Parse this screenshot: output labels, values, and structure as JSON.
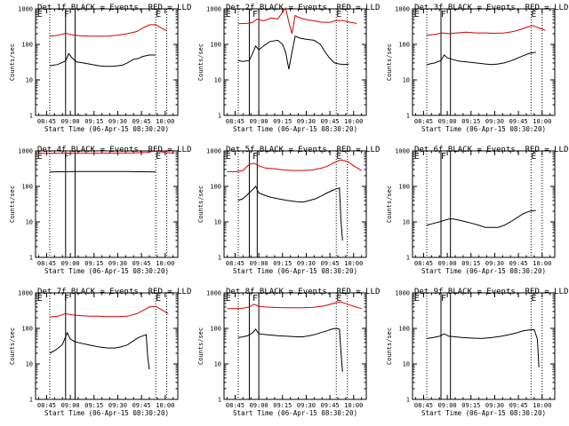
{
  "chart_data": [
    {
      "type": "line",
      "title": "Det 1f BLACK = Events, RED = LLD",
      "ylabel": "Counts/sec",
      "xlabel": "Start Time (06-Apr-15 08:30:20)",
      "x_ticks": [
        "08:45",
        "09:00",
        "09:15",
        "09:30",
        "09:45",
        "10:00"
      ],
      "y_ticks": [
        "1",
        "10",
        "100",
        "1000"
      ],
      "ylim": [
        1,
        1000
      ],
      "yscale": "log",
      "xlim_minutes": [
        8,
        98
      ],
      "markers": [
        {
          "label": "E",
          "t": 9
        },
        {
          "label": "F",
          "t": 26
        },
        {
          "label": "E",
          "t": 84
        }
      ],
      "dotted_lines": [
        17,
        84,
        91
      ],
      "solid_lines": [
        27,
        33
      ],
      "series": [
        {
          "name": "RED = LLD",
          "color": "#d40000",
          "x": [
            17,
            22,
            27,
            31,
            36,
            42,
            48,
            54,
            60,
            66,
            72,
            76,
            80,
            84,
            87,
            91
          ],
          "y": [
            170,
            180,
            205,
            185,
            175,
            170,
            170,
            172,
            182,
            200,
            230,
            290,
            355,
            360,
            300,
            240
          ]
        },
        {
          "name": "BLACK = Events",
          "color": "#000000",
          "x": [
            17,
            22,
            27,
            29,
            31,
            34,
            38,
            42,
            48,
            52,
            56,
            60,
            63,
            66,
            70,
            73,
            76,
            80,
            84
          ],
          "y": [
            25,
            27,
            34,
            55,
            42,
            32,
            30,
            28,
            25,
            24,
            24,
            25,
            26,
            30,
            38,
            40,
            46,
            50,
            50
          ]
        }
      ]
    },
    {
      "type": "line",
      "title": "Det 2f BLACK = Events, RED = LLD",
      "ylabel": "Counts/sec",
      "xlabel": "Start Time (06-Apr-15 08:30:20)",
      "x_ticks": [
        "08:45",
        "09:00",
        "09:15",
        "09:30",
        "09:45",
        "10:00"
      ],
      "y_ticks": [
        "1",
        "10",
        "100",
        "1000"
      ],
      "ylim": [
        1,
        1000
      ],
      "yscale": "log",
      "xlim_minutes": [
        8,
        98
      ],
      "markers": [
        {
          "label": "E",
          "t": 9
        },
        {
          "label": "F",
          "t": 26
        },
        {
          "label": "E",
          "t": 79
        }
      ],
      "dotted_lines": [
        17,
        79,
        86
      ],
      "solid_lines": [
        24,
        30
      ],
      "series": [
        {
          "name": "RED = LLD",
          "color": "#d40000",
          "x": [
            17,
            22,
            26,
            29,
            33,
            38,
            42,
            45,
            47,
            49,
            51,
            53,
            56,
            60,
            65,
            70,
            75,
            79,
            83,
            88,
            92
          ],
          "y": [
            380,
            390,
            410,
            520,
            460,
            560,
            520,
            800,
            1050,
            420,
            200,
            650,
            560,
            500,
            460,
            420,
            420,
            470,
            470,
            420,
            390
          ]
        },
        {
          "name": "BLACK = Events",
          "color": "#000000",
          "x": [
            17,
            20,
            24,
            26,
            28,
            30,
            33,
            37,
            42,
            45,
            47,
            49,
            51,
            53,
            56,
            60,
            65,
            69,
            72,
            75,
            78,
            81,
            84,
            87
          ],
          "y": [
            35,
            33,
            35,
            55,
            90,
            70,
            90,
            120,
            130,
            100,
            60,
            20,
            60,
            170,
            150,
            140,
            130,
            100,
            60,
            40,
            30,
            28,
            27,
            28
          ]
        }
      ]
    },
    {
      "type": "line",
      "title": "Det 3f BLACK = Events, RED = LLD",
      "ylabel": "Counts/sec",
      "xlabel": "Start Time (06-Apr-15 08:30:20)",
      "x_ticks": [
        "08:45",
        "09:00",
        "09:15",
        "09:30",
        "09:45",
        "10:00"
      ],
      "y_ticks": [
        "1",
        "10",
        "100",
        "1000"
      ],
      "ylim": [
        1,
        1000
      ],
      "yscale": "log",
      "xlim_minutes": [
        8,
        98
      ],
      "markers": [
        {
          "label": "E",
          "t": 9
        },
        {
          "label": "F",
          "t": 26
        },
        {
          "label": "E",
          "t": 83
        }
      ],
      "dotted_lines": [
        17,
        83,
        90
      ],
      "solid_lines": [
        26,
        32
      ],
      "series": [
        {
          "name": "RED = LLD",
          "color": "#d40000",
          "x": [
            17,
            22,
            27,
            31,
            36,
            42,
            48,
            54,
            60,
            66,
            72,
            76,
            80,
            84,
            87,
            92
          ],
          "y": [
            180,
            190,
            210,
            200,
            210,
            220,
            210,
            210,
            205,
            210,
            230,
            260,
            300,
            340,
            300,
            250
          ]
        },
        {
          "name": "BLACK = Events",
          "color": "#000000",
          "x": [
            17,
            22,
            26,
            28,
            30,
            33,
            37,
            42,
            48,
            54,
            58,
            62,
            66,
            70,
            74,
            78,
            82,
            86
          ],
          "y": [
            27,
            30,
            35,
            50,
            42,
            38,
            34,
            32,
            30,
            28,
            27,
            28,
            30,
            34,
            40,
            48,
            56,
            60
          ]
        }
      ]
    },
    {
      "type": "line",
      "title": "Det 4f BLACK = Events, RED = LLD",
      "ylabel": "Counts/sec",
      "xlabel": "Start Time (06-Apr-15 08:30:20)",
      "x_ticks": [
        "08:45",
        "09:00",
        "09:15",
        "09:30",
        "09:45",
        "10:00"
      ],
      "y_ticks": [
        "1",
        "10",
        "100",
        "1000"
      ],
      "ylim": [
        1,
        1000
      ],
      "yscale": "log",
      "xlim_minutes": [
        8,
        98
      ],
      "markers": [
        {
          "label": "E",
          "t": 9
        },
        {
          "label": "F",
          "t": 26
        },
        {
          "label": "E",
          "t": 84
        }
      ],
      "dotted_lines": [
        17,
        84,
        91
      ],
      "solid_lines": [
        27,
        33
      ],
      "series": [
        {
          "name": "RED = LLD",
          "color": "#d40000",
          "x": [
            10,
            20,
            30,
            40,
            50,
            60,
            70,
            78,
            84,
            90,
            96
          ],
          "y": [
            850,
            850,
            860,
            860,
            860,
            865,
            870,
            900,
            1000,
            900,
            850
          ]
        },
        {
          "name": "BLACK = Events",
          "color": "#000000",
          "x": [
            17,
            25,
            35,
            45,
            55,
            65,
            75,
            84
          ],
          "y": [
            255,
            258,
            262,
            262,
            262,
            262,
            258,
            255
          ]
        }
      ]
    },
    {
      "type": "line",
      "title": "Det 5f BLACK = Events, RED = LLD",
      "ylabel": "Counts/sec",
      "xlabel": "Start Time (06-Apr-15 08:30:20)",
      "x_ticks": [
        "08:45",
        "09:00",
        "09:15",
        "09:30",
        "09:45",
        "10:00"
      ],
      "y_ticks": [
        "1",
        "10",
        "100",
        "1000"
      ],
      "ylim": [
        1,
        1000
      ],
      "yscale": "log",
      "xlim_minutes": [
        8,
        98
      ],
      "markers": [
        {
          "label": "E",
          "t": 9
        },
        {
          "label": "F",
          "t": 26
        },
        {
          "label": "E",
          "t": 79
        }
      ],
      "dotted_lines": [
        17,
        79,
        86
      ],
      "solid_lines": [
        24,
        29
      ],
      "series": [
        {
          "name": "RED = LLD",
          "color": "#d40000",
          "x": [
            10,
            16,
            20,
            24,
            27,
            30,
            34,
            40,
            46,
            52,
            58,
            64,
            70,
            74,
            78,
            82,
            86,
            90,
            95
          ],
          "y": [
            260,
            260,
            280,
            420,
            450,
            380,
            330,
            310,
            290,
            280,
            280,
            290,
            330,
            380,
            480,
            560,
            500,
            380,
            280
          ]
        },
        {
          "name": "BLACK = Events",
          "color": "#000000",
          "x": [
            17,
            20,
            23,
            26,
            28,
            30,
            33,
            37,
            42,
            48,
            54,
            58,
            62,
            66,
            70,
            73,
            76,
            79,
            81,
            82,
            83
          ],
          "y": [
            40,
            45,
            60,
            80,
            100,
            65,
            58,
            50,
            45,
            40,
            37,
            36,
            40,
            45,
            55,
            65,
            75,
            85,
            90,
            10,
            3
          ]
        }
      ]
    },
    {
      "type": "line",
      "title": "Det 6f BLACK = Events, RED = LLD",
      "ylabel": "Counts/sec",
      "xlabel": "Start Time (06-Apr-15 08:30:20)",
      "x_ticks": [
        "08:45",
        "09:00",
        "09:15",
        "09:30",
        "09:45",
        "10:00"
      ],
      "y_ticks": [
        "1",
        "10",
        "100",
        "1000"
      ],
      "ylim": [
        1,
        1000
      ],
      "yscale": "log",
      "xlim_minutes": [
        8,
        98
      ],
      "markers": [
        {
          "label": "E",
          "t": 9
        },
        {
          "label": "F",
          "t": 26
        },
        {
          "label": "E",
          "t": 83
        }
      ],
      "dotted_lines": [
        17,
        83,
        90
      ],
      "solid_lines": [
        26,
        32
      ],
      "series": [
        {
          "name": "BLACK = Events",
          "color": "#000000",
          "x": [
            17,
            21,
            25,
            28,
            31,
            34,
            38,
            42,
            46,
            50,
            54,
            58,
            62,
            66,
            70,
            74,
            78,
            82,
            86
          ],
          "y": [
            8,
            9,
            10,
            11,
            12,
            12,
            11,
            10,
            9,
            8,
            7,
            7,
            7,
            8,
            10,
            13,
            17,
            20,
            21
          ]
        }
      ]
    },
    {
      "type": "line",
      "title": "Det 7f BLACK = Events, RED = LLD",
      "ylabel": "Counts/sec",
      "xlabel": "Start Time (06-Apr-15 08:30:20)",
      "x_ticks": [
        "08:45",
        "09:00",
        "09:15",
        "09:30",
        "09:45",
        "10:00"
      ],
      "y_ticks": [
        "1",
        "10",
        "100",
        "1000"
      ],
      "ylim": [
        1,
        1000
      ],
      "yscale": "log",
      "xlim_minutes": [
        8,
        98
      ],
      "markers": [
        {
          "label": "E",
          "t": 9
        },
        {
          "label": "F",
          "t": 26
        },
        {
          "label": "E",
          "t": 84
        }
      ],
      "dotted_lines": [
        17,
        84,
        91
      ],
      "solid_lines": [
        27,
        33
      ],
      "series": [
        {
          "name": "RED = LLD",
          "color": "#d40000",
          "x": [
            17,
            22,
            27,
            31,
            36,
            42,
            48,
            54,
            60,
            66,
            72,
            76,
            80,
            84,
            87,
            92
          ],
          "y": [
            210,
            220,
            260,
            240,
            230,
            220,
            220,
            215,
            215,
            220,
            260,
            320,
            400,
            420,
            350,
            260
          ]
        },
        {
          "name": "BLACK = Events",
          "color": "#000000",
          "x": [
            17,
            21,
            25,
            28,
            30,
            33,
            37,
            42,
            48,
            54,
            58,
            62,
            66,
            70,
            73,
            76,
            78,
            79,
            80
          ],
          "y": [
            20,
            25,
            35,
            75,
            50,
            42,
            38,
            34,
            30,
            28,
            28,
            30,
            34,
            45,
            55,
            62,
            66,
            15,
            7
          ]
        }
      ]
    },
    {
      "type": "line",
      "title": "Det 8f BLACK = Events, RED = LLD",
      "ylabel": "Counts/sec",
      "xlabel": "Start Time (06-Apr-15 08:30:20)",
      "x_ticks": [
        "08:45",
        "09:00",
        "09:15",
        "09:30",
        "09:45",
        "10:00"
      ],
      "y_ticks": [
        "1",
        "10",
        "100",
        "1000"
      ],
      "ylim": [
        1,
        1000
      ],
      "yscale": "log",
      "xlim_minutes": [
        8,
        98
      ],
      "markers": [
        {
          "label": "E",
          "t": 9
        },
        {
          "label": "F",
          "t": 26
        },
        {
          "label": "E",
          "t": 79
        }
      ],
      "dotted_lines": [
        17,
        79,
        86
      ],
      "solid_lines": [
        24,
        30
      ],
      "series": [
        {
          "name": "RED = LLD",
          "color": "#d40000",
          "x": [
            10,
            16,
            20,
            24,
            27,
            30,
            34,
            40,
            46,
            52,
            58,
            64,
            70,
            74,
            78,
            82,
            86,
            90,
            95
          ],
          "y": [
            360,
            360,
            370,
            400,
            480,
            420,
            400,
            390,
            380,
            380,
            380,
            390,
            420,
            460,
            520,
            560,
            480,
            420,
            360
          ]
        },
        {
          "name": "BLACK = Events",
          "color": "#000000",
          "x": [
            17,
            20,
            23,
            26,
            28,
            30,
            33,
            37,
            42,
            48,
            54,
            58,
            62,
            66,
            70,
            73,
            76,
            79,
            81,
            82,
            83
          ],
          "y": [
            55,
            58,
            62,
            75,
            95,
            70,
            68,
            65,
            62,
            60,
            58,
            58,
            62,
            68,
            78,
            85,
            95,
            100,
            95,
            20,
            6
          ]
        }
      ]
    },
    {
      "type": "line",
      "title": "Det 9f BLACK = Events, RED = LLD",
      "ylabel": "Counts/sec",
      "xlabel": "Start Time (06-Apr-15 08:30:20)",
      "x_ticks": [
        "08:45",
        "09:00",
        "09:15",
        "09:30",
        "09:45",
        "10:00"
      ],
      "y_ticks": [
        "1",
        "10",
        "100",
        "1000"
      ],
      "ylim": [
        1,
        1000
      ],
      "yscale": "log",
      "xlim_minutes": [
        8,
        98
      ],
      "markers": [
        {
          "label": "E",
          "t": 9
        },
        {
          "label": "F",
          "t": 26
        },
        {
          "label": "E",
          "t": 83
        }
      ],
      "dotted_lines": [
        17,
        83,
        90
      ],
      "solid_lines": [
        26,
        32
      ],
      "series": [
        {
          "name": "BLACK = Events",
          "color": "#000000",
          "x": [
            17,
            21,
            25,
            28,
            31,
            35,
            40,
            46,
            52,
            58,
            64,
            70,
            74,
            78,
            82,
            85,
            87,
            88
          ],
          "y": [
            52,
            55,
            60,
            70,
            60,
            58,
            55,
            53,
            52,
            55,
            60,
            68,
            75,
            85,
            90,
            92,
            50,
            8
          ]
        }
      ]
    }
  ]
}
